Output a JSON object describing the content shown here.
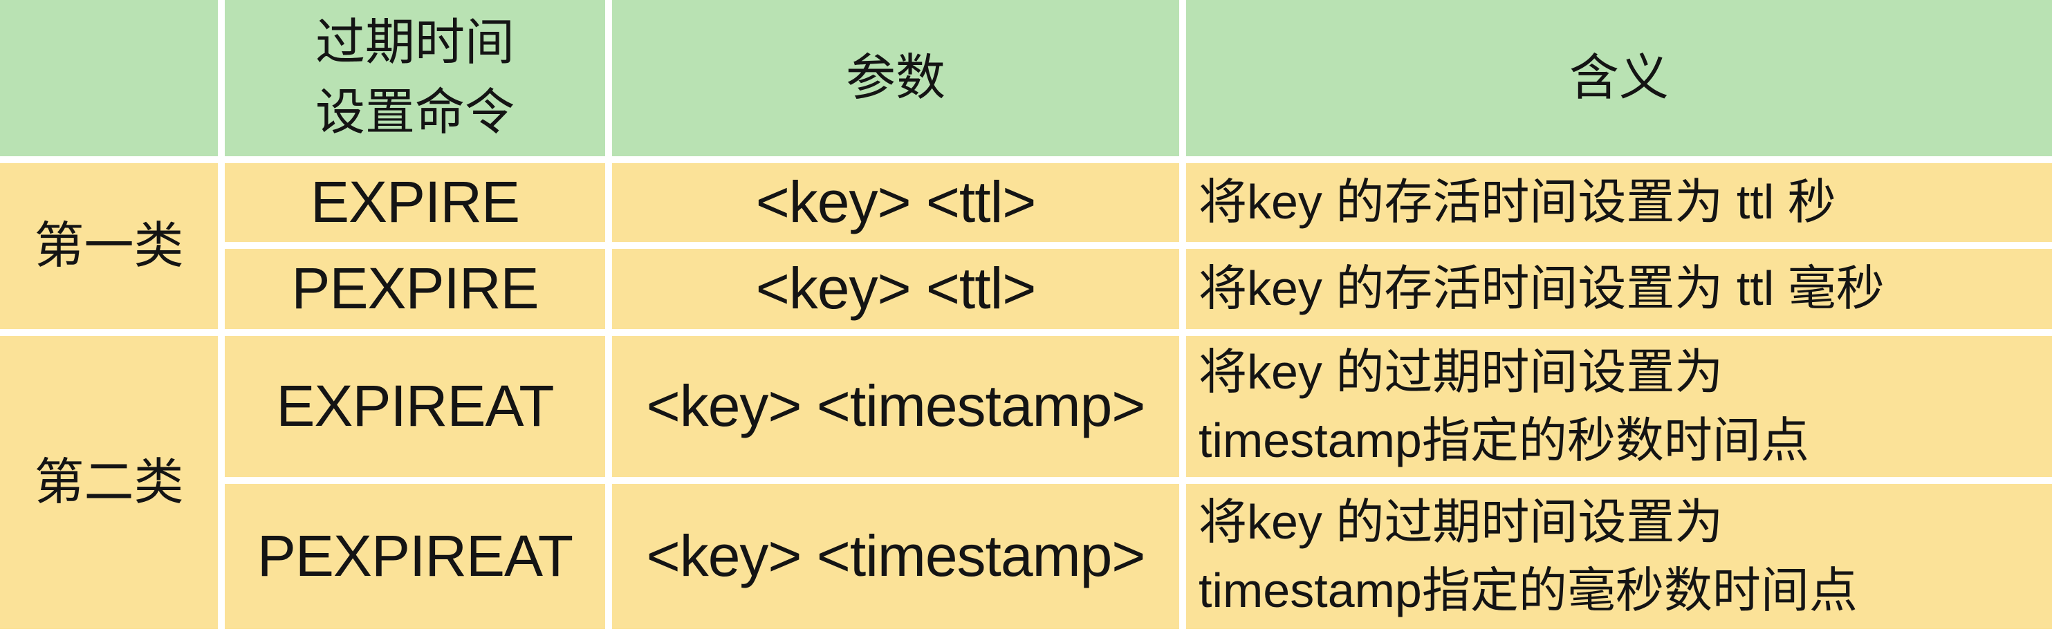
{
  "colors": {
    "header_bg": "#b9e2b3",
    "body_bg": "#fbe298",
    "gridline": "#ffffff",
    "text": "#141414"
  },
  "table": {
    "columns": [
      {
        "label": ""
      },
      {
        "label": "过期时间\n设置命令"
      },
      {
        "label": "参数"
      },
      {
        "label": "含义"
      }
    ],
    "groups": [
      {
        "category": "第一类",
        "rows": [
          {
            "command": "EXPIRE",
            "params": "<key> <ttl>",
            "meaning": "将key 的存活时间设置为 ttl 秒"
          },
          {
            "command": "PEXPIRE",
            "params": "<key> <ttl>",
            "meaning": "将key 的存活时间设置为 ttl 毫秒"
          }
        ]
      },
      {
        "category": "第二类",
        "rows": [
          {
            "command": "EXPIREAT",
            "params": "<key> <timestamp>",
            "meaning": "将key 的过期时间设置为\ntimestamp指定的秒数时间点"
          },
          {
            "command": "PEXPIREAT",
            "params": "<key> <timestamp>",
            "meaning": "将key 的过期时间设置为\ntimestamp指定的毫秒数时间点"
          }
        ]
      }
    ]
  },
  "chart_data": {
    "type": "table",
    "title": "",
    "columns": [
      "",
      "过期时间 设置命令",
      "参数",
      "含义"
    ],
    "rows": [
      [
        "第一类",
        "EXPIRE",
        "<key> <ttl>",
        "将key 的存活时间设置为 ttl 秒"
      ],
      [
        "第一类",
        "PEXPIRE",
        "<key> <ttl>",
        "将key 的存活时间设置为 ttl 毫秒"
      ],
      [
        "第二类",
        "EXPIREAT",
        "<key> <timestamp>",
        "将key 的过期时间设置为 timestamp指定的秒数时间点"
      ],
      [
        "第二类",
        "PEXPIREAT",
        "<key> <timestamp>",
        "将key 的过期时间设置为 timestamp指定的毫秒数时间点"
      ]
    ],
    "row_groups": [
      {
        "label": "第一类",
        "span": 2
      },
      {
        "label": "第二类",
        "span": 2
      }
    ],
    "layout": {
      "header_fill": "#b9e2b3",
      "body_fill": "#fbe298",
      "grid_color": "#ffffff"
    }
  }
}
